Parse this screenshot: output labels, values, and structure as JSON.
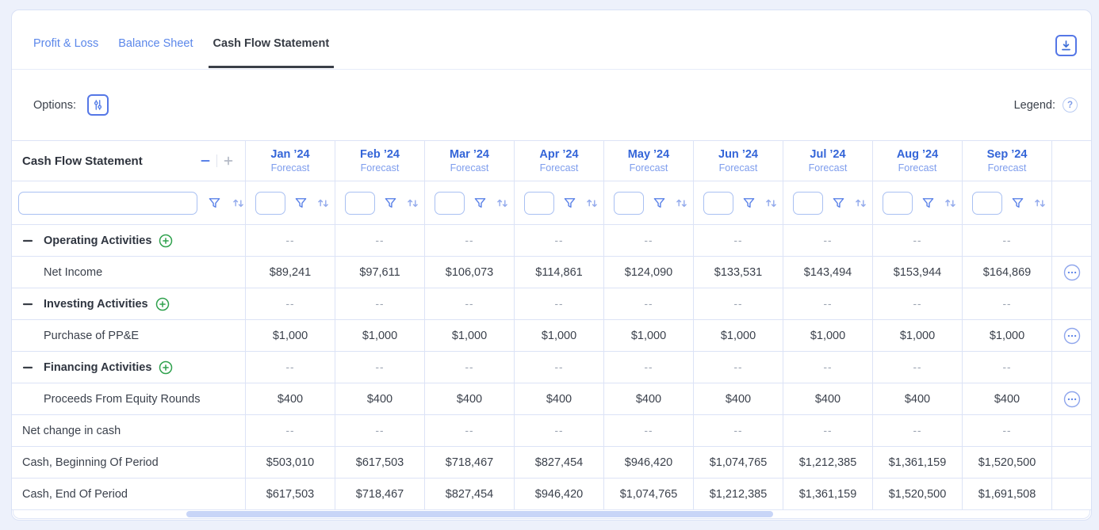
{
  "tabs": [
    {
      "label": "Profit & Loss",
      "active": false
    },
    {
      "label": "Balance Sheet",
      "active": false
    },
    {
      "label": "Cash Flow Statement",
      "active": true
    }
  ],
  "toolbar": {
    "options_label": "Options:",
    "legend_label": "Legend:",
    "help_glyph": "?"
  },
  "colors": {
    "accent_blue": "#3465d8",
    "forecast_blue": "#7e9ded",
    "tab_blue": "#5b87ea",
    "green": "#2fa14d",
    "grid_line": "#dce3f6"
  },
  "table": {
    "title": "Cash Flow Statement",
    "columns": [
      {
        "label": "Jan ’24",
        "sub": "Forecast"
      },
      {
        "label": "Feb ’24",
        "sub": "Forecast"
      },
      {
        "label": "Mar ’24",
        "sub": "Forecast"
      },
      {
        "label": "Apr ’24",
        "sub": "Forecast"
      },
      {
        "label": "May ’24",
        "sub": "Forecast"
      },
      {
        "label": "Jun ’24",
        "sub": "Forecast"
      },
      {
        "label": "Jul ’24",
        "sub": "Forecast"
      },
      {
        "label": "Aug ’24",
        "sub": "Forecast"
      },
      {
        "label": "Sep ’24",
        "sub": "Forecast"
      }
    ],
    "rows": [
      {
        "kind": "group",
        "label": "Operating Activities",
        "values": [
          "--",
          "--",
          "--",
          "--",
          "--",
          "--",
          "--",
          "--",
          "--"
        ],
        "has_menu": false
      },
      {
        "kind": "detail",
        "label": "Net Income",
        "values": [
          "$89,241",
          "$97,611",
          "$106,073",
          "$114,861",
          "$124,090",
          "$133,531",
          "$143,494",
          "$153,944",
          "$164,869"
        ],
        "has_menu": true
      },
      {
        "kind": "group",
        "label": "Investing Activities",
        "values": [
          "--",
          "--",
          "--",
          "--",
          "--",
          "--",
          "--",
          "--",
          "--"
        ],
        "has_menu": false
      },
      {
        "kind": "detail",
        "label": "Purchase of PP&E",
        "values": [
          "$1,000",
          "$1,000",
          "$1,000",
          "$1,000",
          "$1,000",
          "$1,000",
          "$1,000",
          "$1,000",
          "$1,000"
        ],
        "has_menu": true
      },
      {
        "kind": "group",
        "label": "Financing Activities",
        "values": [
          "--",
          "--",
          "--",
          "--",
          "--",
          "--",
          "--",
          "--",
          "--"
        ],
        "has_menu": false
      },
      {
        "kind": "detail",
        "label": "Proceeds From Equity Rounds",
        "values": [
          "$400",
          "$400",
          "$400",
          "$400",
          "$400",
          "$400",
          "$400",
          "$400",
          "$400"
        ],
        "has_menu": true
      },
      {
        "kind": "plain",
        "label": "Net change in cash",
        "values": [
          "--",
          "--",
          "--",
          "--",
          "--",
          "--",
          "--",
          "--",
          "--"
        ],
        "has_menu": false
      },
      {
        "kind": "plain",
        "label": "Cash, Beginning Of Period",
        "values": [
          "$503,010",
          "$617,503",
          "$718,467",
          "$827,454",
          "$946,420",
          "$1,074,765",
          "$1,212,385",
          "$1,361,159",
          "$1,520,500"
        ],
        "has_menu": false
      },
      {
        "kind": "plain",
        "label": "Cash, End Of Period",
        "values": [
          "$617,503",
          "$718,467",
          "$827,454",
          "$946,420",
          "$1,074,765",
          "$1,212,385",
          "$1,361,159",
          "$1,520,500",
          "$1,691,508"
        ],
        "has_menu": false
      }
    ]
  }
}
